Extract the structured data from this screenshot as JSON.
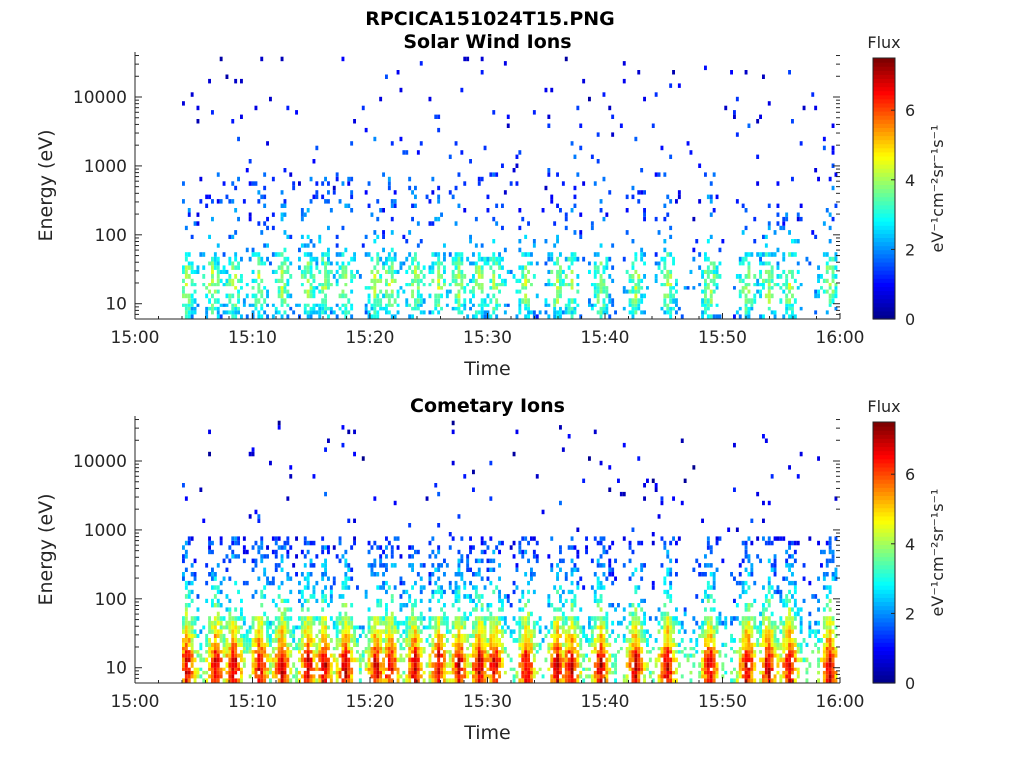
{
  "figure": {
    "title": "RPCICA151024T15.PNG"
  },
  "colors": {
    "colormap": [
      "#00008f",
      "#0000ff",
      "#0080ff",
      "#00ffff",
      "#80ff80",
      "#ffff00",
      "#ff8000",
      "#ff0000",
      "#800000"
    ],
    "axis": "#262626",
    "background": "#ffffff"
  },
  "chart_data": [
    {
      "type": "heatmap",
      "title": "Solar Wind Ions",
      "xlabel": "Time",
      "ylabel": "Energy (eV)",
      "xticks": [
        "15:00",
        "15:10",
        "15:20",
        "15:30",
        "15:40",
        "15:50",
        "16:00"
      ],
      "xlim_minutes": [
        0,
        60
      ],
      "yscale": "log",
      "yticks": [
        "10",
        "100",
        "1000",
        "10000"
      ],
      "ylim": [
        6,
        45000
      ],
      "colorbar": {
        "label_title": "Flux",
        "label_units": "eV⁻¹cm⁻²sr⁻¹s⁻¹",
        "ticks": [
          "0",
          "2",
          "4",
          "6"
        ],
        "range": [
          0,
          7.5
        ]
      },
      "activity_bursts_minutes": [
        4.3,
        6.5,
        8.3,
        10.5,
        12.4,
        14.6,
        16.0,
        17.8,
        20.4,
        21.6,
        23.7,
        25.7,
        27.5,
        29.2,
        30.5,
        33.2,
        35.8,
        37.0,
        39.5,
        42.5,
        45.2,
        48.8,
        52.0,
        53.8,
        55.6,
        59.0
      ],
      "energy_bins_eV": [
        6,
        7,
        8,
        9,
        10,
        12,
        14,
        16,
        18,
        20,
        23,
        27,
        31,
        36,
        41,
        48,
        56,
        65,
        75,
        87,
        100,
        117,
        135,
        157,
        182,
        211,
        245,
        284,
        330,
        383,
        444,
        515,
        598,
        694,
        805,
        934,
        1084,
        1258,
        1459,
        1693,
        1965,
        2280,
        2645,
        3069,
        3561,
        4132,
        4795,
        5563,
        6455,
        7491,
        8692,
        10086,
        11704,
        13581,
        15759,
        18287,
        21220,
        24623,
        28572,
        33155,
        38472
      ],
      "flux_profile_by_bin": [
        2.6,
        2.8,
        3.0,
        3.2,
        3.4,
        3.5,
        3.6,
        3.7,
        3.8,
        3.8,
        3.8,
        3.6,
        3.4,
        3.2,
        3.0,
        2.8,
        2.6,
        2.4,
        2.3,
        2.2,
        2.0,
        1.9,
        1.8,
        1.7,
        1.7,
        1.6,
        1.6,
        1.6,
        1.6,
        1.6,
        1.5,
        1.5,
        1.5,
        1.5,
        1.5,
        1.5,
        1.5,
        1.5,
        1.5,
        1.5,
        1.5,
        1.4,
        1.4,
        1.4,
        1.4,
        1.3,
        1.3,
        1.3,
        1.3,
        1.2,
        1.2,
        1.2,
        1.1,
        1.1,
        1.0,
        1.0,
        1.0,
        0.9,
        0.9,
        0.8,
        0.8
      ]
    },
    {
      "type": "heatmap",
      "title": "Cometary Ions",
      "xlabel": "Time",
      "ylabel": "Energy (eV)",
      "xticks": [
        "15:00",
        "15:10",
        "15:20",
        "15:30",
        "15:40",
        "15:50",
        "16:00"
      ],
      "xlim_minutes": [
        0,
        60
      ],
      "yscale": "log",
      "yticks": [
        "10",
        "100",
        "1000",
        "10000"
      ],
      "ylim": [
        6,
        45000
      ],
      "colorbar": {
        "label_title": "Flux",
        "label_units": "eV⁻¹cm⁻²sr⁻¹s⁻¹",
        "ticks": [
          "0",
          "2",
          "4",
          "6"
        ],
        "range": [
          0,
          7.5
        ]
      },
      "activity_bursts_minutes": [
        4.3,
        6.8,
        8.3,
        10.5,
        12.4,
        14.6,
        16.0,
        17.8,
        20.4,
        21.6,
        23.7,
        25.7,
        27.5,
        29.2,
        30.5,
        33.2,
        35.8,
        37.0,
        39.5,
        42.5,
        45.2,
        48.8,
        52.0,
        53.8,
        55.6,
        59.0
      ],
      "energy_bins_eV": [
        6,
        7,
        8,
        9,
        10,
        12,
        14,
        16,
        18,
        20,
        23,
        27,
        31,
        36,
        41,
        48,
        56,
        65,
        75,
        87,
        100,
        117,
        135,
        157,
        182,
        211,
        245,
        284,
        330,
        383,
        444,
        515,
        598,
        694,
        805,
        934,
        1084,
        1258,
        1459,
        1693,
        1965,
        2280,
        2645,
        3069,
        3561,
        4132,
        4795,
        5563,
        6455,
        7491,
        8692,
        10086,
        11704,
        13581,
        15759,
        18287,
        21220,
        24623,
        28572,
        33155,
        38472
      ],
      "flux_profile_by_bin": [
        6.0,
        6.2,
        6.3,
        6.4,
        6.4,
        6.3,
        6.1,
        5.8,
        5.5,
        5.2,
        5.0,
        4.8,
        4.6,
        4.3,
        4.1,
        3.9,
        3.7,
        3.5,
        3.3,
        3.1,
        2.9,
        2.7,
        2.6,
        2.4,
        2.3,
        2.2,
        2.1,
        2.0,
        1.9,
        1.8,
        1.7,
        1.6,
        1.5,
        1.5,
        1.4,
        1.4,
        1.3,
        1.3,
        1.3,
        1.2,
        1.2,
        1.2,
        1.1,
        1.1,
        1.1,
        1.0,
        1.0,
        1.0,
        0.9,
        0.9,
        0.9,
        0.8,
        0.8,
        0.8,
        0.7,
        0.7,
        0.7,
        0.6,
        0.6,
        0.6,
        0.5
      ]
    }
  ]
}
